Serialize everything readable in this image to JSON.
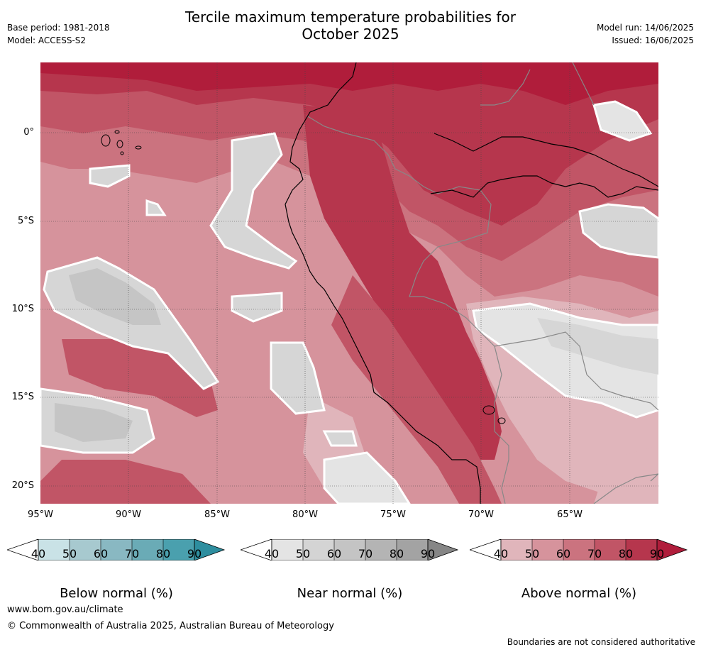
{
  "title_line1": "Tercile maximum temperature probabilities for",
  "title_line2": "October 2025",
  "meta_left": [
    "Base period: 1981-2018",
    "Model: ACCESS-S2"
  ],
  "meta_right": [
    "Model run: 14/06/2025",
    "Issued: 16/06/2025"
  ],
  "map": {
    "lat_labels": [
      "0°",
      "5°S",
      "10°S",
      "15°S",
      "20°S"
    ],
    "lon_labels": [
      "95°W",
      "90°W",
      "85°W",
      "80°W",
      "75°W",
      "70°W",
      "65°W"
    ],
    "colors": {
      "above_40_50": "#e0b5bb",
      "above_50_60": "#d6939c",
      "above_60_70": "#cb737f",
      "above_70_80": "#c15566",
      "above_80_90": "#b6364d",
      "above_90": "#b01d3b",
      "near_40_50": "#e4e4e4",
      "near_50_60": "#d6d6d6",
      "near_60_70": "#c5c5c5",
      "coast": "#000000",
      "border": "#888888"
    }
  },
  "colorbars": [
    {
      "title": "Below normal (%)",
      "ticks": [
        "40",
        "50",
        "60",
        "70",
        "80",
        "90"
      ],
      "colors": [
        "#ffffff",
        "#c9e2e6",
        "#a7c9cf",
        "#89b8c2",
        "#6aabb6",
        "#4aa0ae",
        "#2e8e9f"
      ]
    },
    {
      "title": "Near normal (%)",
      "ticks": [
        "40",
        "50",
        "60",
        "70",
        "80",
        "90"
      ],
      "colors": [
        "#ffffff",
        "#e4e4e4",
        "#d4d4d4",
        "#c4c4c4",
        "#b4b4b4",
        "#a3a3a3",
        "#868686"
      ]
    },
    {
      "title": "Above normal (%)",
      "ticks": [
        "40",
        "50",
        "60",
        "70",
        "80",
        "90"
      ],
      "colors": [
        "#ffffff",
        "#e0b5bb",
        "#d6939c",
        "#cb737f",
        "#c15566",
        "#b6364d",
        "#b01d3b"
      ]
    }
  ],
  "footer": {
    "url": "www.bom.gov.au/climate",
    "copyright": "© Commonwealth of Australia 2025, Australian Bureau of Meteorology",
    "note": "Boundaries are not considered authoritative"
  }
}
